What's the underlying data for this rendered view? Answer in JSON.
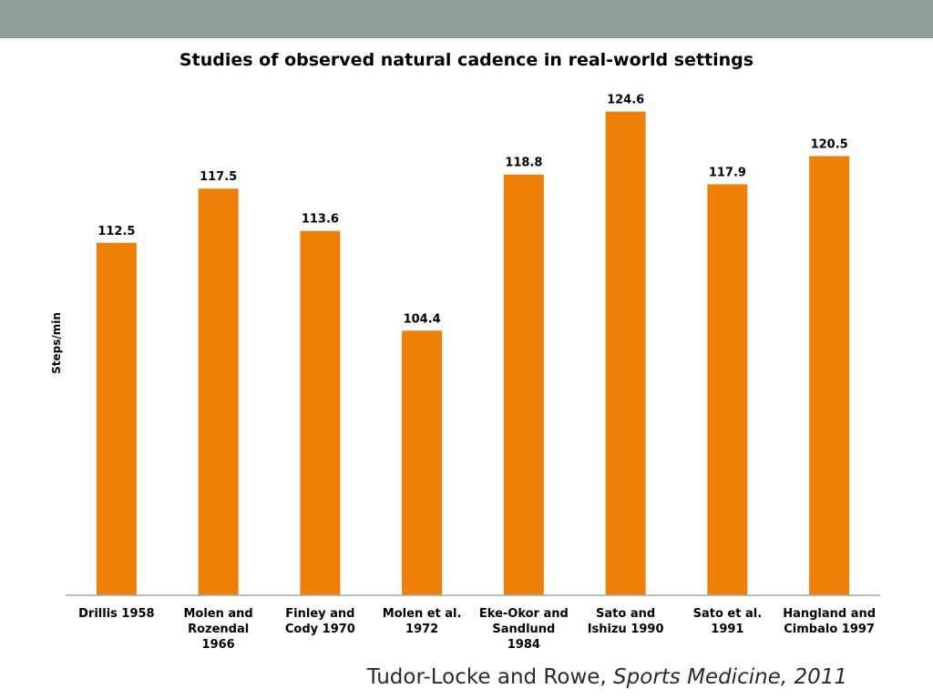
{
  "chart_data": {
    "type": "bar",
    "title": "Studies of observed natural cadence in real-world settings",
    "ylabel": "Steps/min",
    "xlabel": "",
    "categories": [
      "Drillis 1958",
      "Molen and Rozendal 1966",
      "Finley and Cody 1970",
      "Molen et al. 1972",
      "Eke-Okor and Sandlund 1984",
      "Sato and Ishizu 1990",
      "Sato et al. 1991",
      "Hangland and Cimbalo 1997"
    ],
    "category_lines": [
      [
        "Drillis 1958"
      ],
      [
        "Molen and",
        "Rozendal",
        "1966"
      ],
      [
        "Finley and",
        "Cody 1970"
      ],
      [
        "Molen et al.",
        "1972"
      ],
      [
        "Eke-Okor and",
        "Sandlund",
        "1984"
      ],
      [
        "Sato and",
        "Ishizu 1990"
      ],
      [
        "Sato et al.",
        "1991"
      ],
      [
        "Hangland and",
        "Cimbalo 1997"
      ]
    ],
    "values": [
      112.5,
      117.5,
      113.6,
      104.4,
      118.8,
      124.6,
      117.9,
      120.5
    ],
    "value_labels": [
      "112.5",
      "117.5",
      "113.6",
      "104.4",
      "118.8",
      "124.6",
      "117.9",
      "120.5"
    ],
    "ylim": [
      80,
      126.5
    ],
    "grid": false,
    "legend": "none",
    "bar_color": "#f07f09"
  },
  "citation": {
    "authors": "Tudor-Locke and Rowe, ",
    "journal": "Sports Medicine, 2011"
  }
}
